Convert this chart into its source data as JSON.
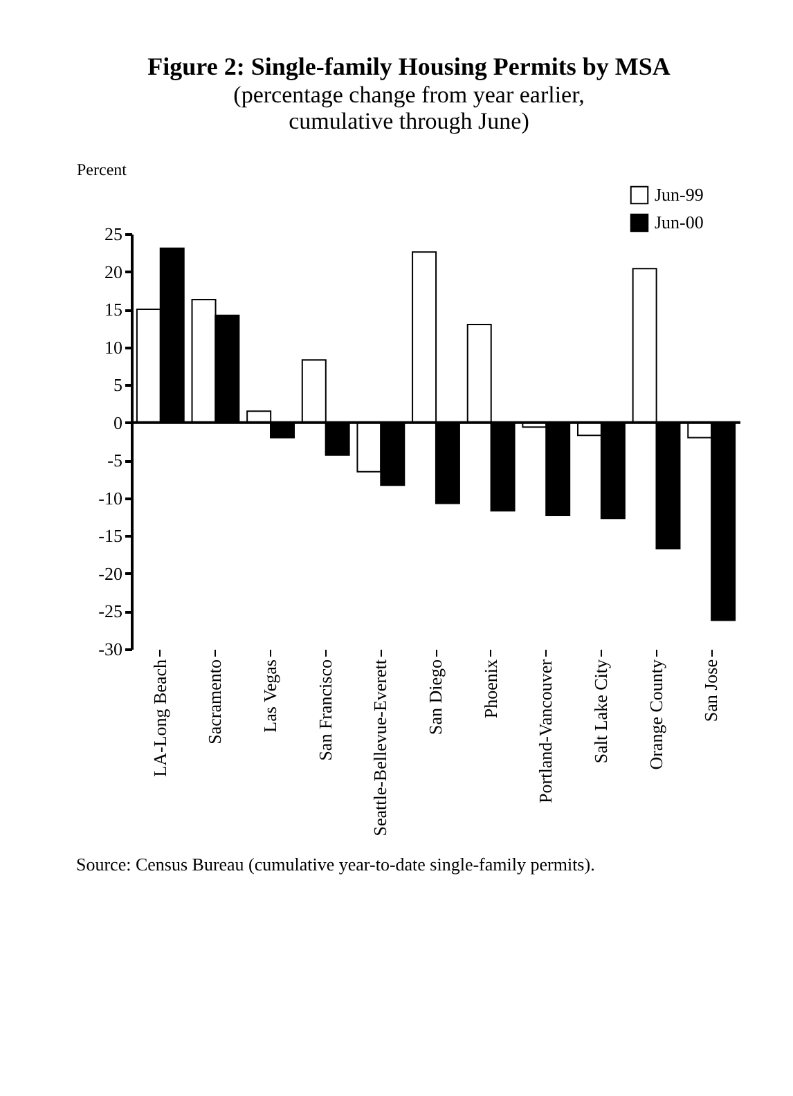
{
  "chart_data": {
    "type": "bar",
    "title": "Figure 2: Single-family Housing Permits by MSA",
    "subtitle": [
      "(percentage change from year earlier,",
      "cumulative through June)"
    ],
    "ylabel": "Percent",
    "categories": [
      "LA-Long Beach",
      "Sacramento",
      "Las Vegas",
      "San Francisco",
      "Seattle-Bellevue-Everett",
      "San Diego",
      "Phoenix",
      "Portland-Vancouver",
      "Salt Lake City",
      "Orange County",
      "San Jose"
    ],
    "series": [
      {
        "name": "Jun-99",
        "color": "#ffffff",
        "values": [
          15.0,
          16.3,
          1.5,
          8.3,
          -6.5,
          22.6,
          13.0,
          -0.6,
          -1.7,
          20.4,
          -2.0
        ]
      },
      {
        "name": "Jun-00",
        "color": "#000000",
        "values": [
          23.1,
          14.2,
          -2.0,
          -4.3,
          -8.3,
          -10.7,
          -11.7,
          -12.3,
          -12.7,
          -16.7,
          -26.2
        ]
      }
    ],
    "ref_lines": [
      {
        "axis": "y",
        "value": 0,
        "color": "#000000"
      }
    ],
    "ylim": [
      -30,
      25
    ],
    "yticks": [
      -30,
      -25,
      -20,
      -15,
      -10,
      -5,
      0,
      5,
      10,
      15,
      20,
      25
    ],
    "grid": false,
    "legend": "top right",
    "annotations": [
      "Source: Census Bureau (cumulative year-to-date single-family permits)."
    ]
  }
}
